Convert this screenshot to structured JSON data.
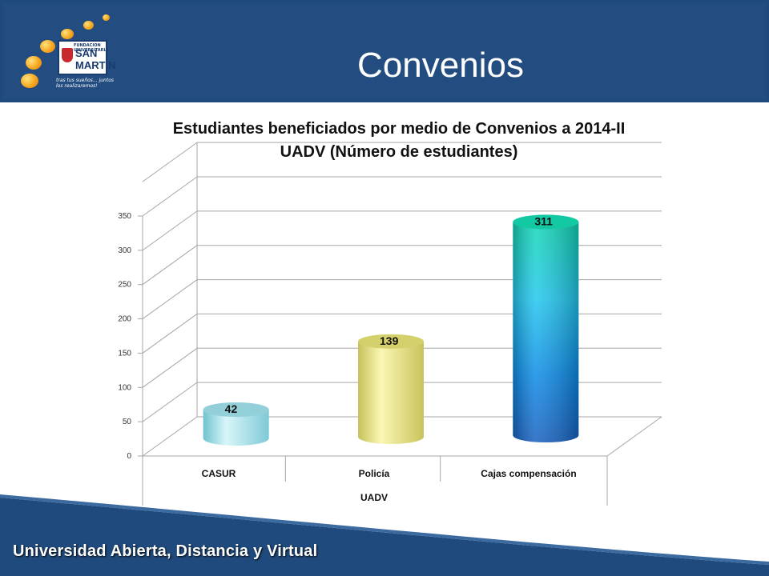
{
  "slide": {
    "title": "Convenios",
    "footer": "Universidad Abierta, Distancia y Virtual"
  },
  "logo": {
    "name": "FUNDACIÓN UNIVERSITARIA SAN MARTÍN",
    "line1": "SAN",
    "line2": "MARTIN",
    "top": "FUNDACION UNIVERSITARIA",
    "tagline": "tras tus sueños... juntos los realizaremos!"
  },
  "colors": {
    "header": "#234d80",
    "bar_casur": "#a9e2ee",
    "bar_policia": "#e9e58a",
    "bar_cajas": "#1fb6e6"
  },
  "chart_data": {
    "type": "bar",
    "title": "Estudiantes beneficiados por medio de Convenios a 2014-II UADV (Número de estudiantes)",
    "title_line1": "Estudiantes beneficiados por medio de Convenios a 2014-II",
    "title_line2": "UADV (Número de estudiantes)",
    "categories": [
      "CASUR",
      "Policía",
      "Cajas compensación"
    ],
    "values": [
      42,
      139,
      311
    ],
    "data_labels": [
      "42",
      "139",
      "311"
    ],
    "group_label": "UADV",
    "yticks": [
      "0",
      "50",
      "100",
      "150",
      "200",
      "250",
      "300",
      "350"
    ],
    "ylim": [
      0,
      350
    ],
    "grid": true,
    "style": "3d-cylinder"
  }
}
